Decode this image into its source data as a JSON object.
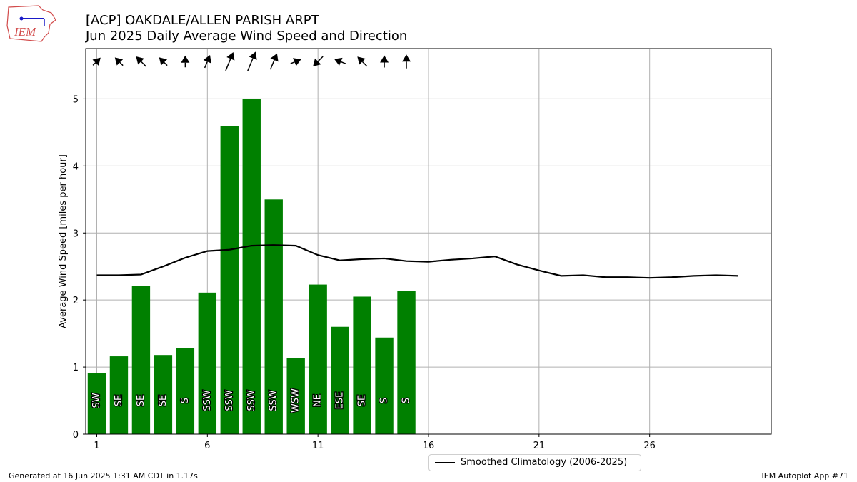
{
  "header": {
    "title_line1": "[ACP] OAKDALE/ALLEN PARISH ARPT",
    "title_line2": "Jun 2025 Daily Average Wind Speed and Direction"
  },
  "logo": {
    "text": "IEM"
  },
  "footer": {
    "generated": "Generated at 16 Jun 2025 1:31 AM CDT in 1.17s",
    "app": "IEM Autoplot App #71"
  },
  "legend": {
    "label": "Smoothed Climatology (2006-2025)"
  },
  "chart_data": {
    "type": "bar",
    "title": "[ACP] OAKDALE/ALLEN PARISH ARPT\nJun 2025 Daily Average Wind Speed and Direction",
    "ylabel": "Average Wind Speed [miles per hour]",
    "xlabel": "",
    "xlim": [
      0.5,
      31.5
    ],
    "ylim": [
      0,
      5.75
    ],
    "xticks": [
      1,
      6,
      11,
      16,
      21,
      26
    ],
    "yticks": [
      0,
      1,
      2,
      3,
      4,
      5
    ],
    "grid": true,
    "bar_color": "#008000",
    "days": [
      1,
      2,
      3,
      4,
      5,
      6,
      7,
      8,
      9,
      10,
      11,
      12,
      13,
      14,
      15
    ],
    "speeds": [
      0.91,
      1.16,
      2.21,
      1.18,
      1.28,
      2.11,
      4.59,
      5.0,
      3.5,
      1.13,
      2.23,
      1.6,
      2.05,
      1.44,
      2.13
    ],
    "directions": [
      "SW",
      "SE",
      "SE",
      "SE",
      "S",
      "SSW",
      "SSW",
      "SSW",
      "SSW",
      "WSW",
      "NE",
      "ESE",
      "SE",
      "S",
      "S"
    ],
    "climatology": {
      "name": "Smoothed Climatology (2006-2025)",
      "x": [
        1,
        2,
        3,
        4,
        5,
        6,
        7,
        8,
        9,
        10,
        11,
        12,
        13,
        14,
        15,
        16,
        17,
        18,
        19,
        20,
        21,
        22,
        23,
        24,
        25,
        26,
        27,
        28,
        29,
        30
      ],
      "y": [
        2.37,
        2.37,
        2.38,
        2.5,
        2.63,
        2.73,
        2.75,
        2.81,
        2.82,
        2.81,
        2.67,
        2.59,
        2.61,
        2.62,
        2.58,
        2.57,
        2.6,
        2.62,
        2.65,
        2.53,
        2.44,
        2.36,
        2.37,
        2.34,
        2.34,
        2.33,
        2.34,
        2.36,
        2.37,
        2.36
      ]
    }
  }
}
